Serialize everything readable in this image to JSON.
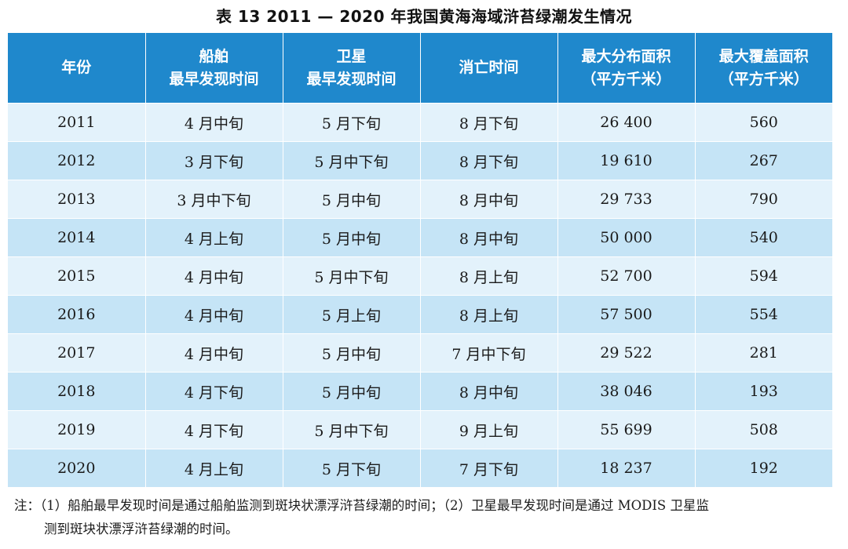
{
  "title": "表 13  2011 — 2020 年我国黄海海域浒苔绿潮发生情况",
  "headers": [
    [
      "年份"
    ],
    [
      "船舶",
      "最早发现时间"
    ],
    [
      "卫星",
      "最早发现时间"
    ],
    [
      "消亡时间"
    ],
    [
      "最大分布面积",
      "（平方千米）"
    ],
    [
      "最大覆盖面积",
      "（平方千米）"
    ]
  ],
  "rows": [
    [
      "2011",
      "4 月中旬",
      "5 月下旬",
      "8 月下旬",
      "26 400",
      "560"
    ],
    [
      "2012",
      "3 月下旬",
      "5 月中下旬",
      "8 月下旬",
      "19 610",
      "267"
    ],
    [
      "2013",
      "3 月中下旬",
      "5 月中旬",
      "8 月中旬",
      "29 733",
      "790"
    ],
    [
      "2014",
      "4 月上旬",
      "5 月中旬",
      "8 月中旬",
      "50 000",
      "540"
    ],
    [
      "2015",
      "4 月中旬",
      "5 月中下旬",
      "8 月上旬",
      "52 700",
      "594"
    ],
    [
      "2016",
      "4 月中旬",
      "5 月上旬",
      "8 月上旬",
      "57 500",
      "554"
    ],
    [
      "2017",
      "4 月中旬",
      "5 月中旬",
      "7 月中下旬",
      "29 522",
      "281"
    ],
    [
      "2018",
      "4 月下旬",
      "5 月中旬",
      "8 月中旬",
      "38 046",
      "193"
    ],
    [
      "2019",
      "4 月下旬",
      "5 月中下旬",
      "9 月上旬",
      "55 699",
      "508"
    ],
    [
      "2020",
      "4 月上旬",
      "5 月下旬",
      "7 月下旬",
      "18 237",
      "192"
    ]
  ],
  "note": {
    "line1": "注：（1）船舶最早发现时间是通过船舶监测到斑块状漂浮浒苔绿潮的时间；（2）卫星最早发现时间是通过 MODIS 卫星监",
    "line2": "测到斑块状漂浮浒苔绿潮的时间。"
  },
  "colors": {
    "header_bg": "#1f88cc",
    "row_light": "#e3f2fb",
    "row_dark": "#c5e4f6"
  }
}
